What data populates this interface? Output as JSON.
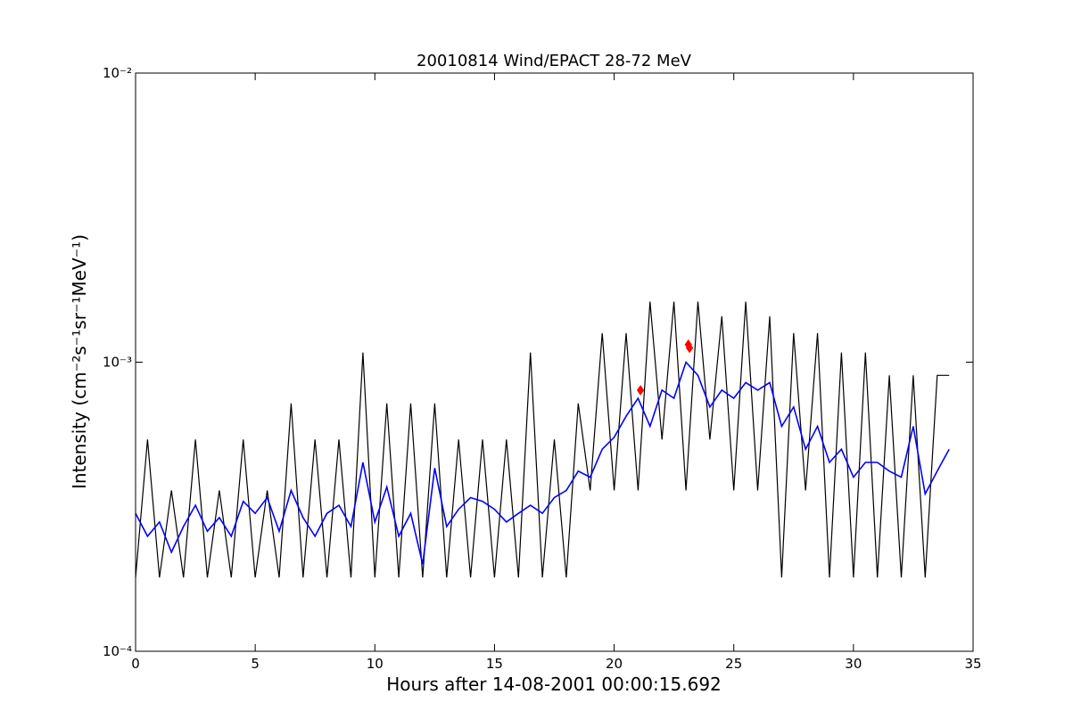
{
  "chart_data": {
    "type": "line",
    "title": "20010814 Wind/EPACT 28-72 MeV",
    "xlabel": "Hours after 14-08-2001 00:00:15.692",
    "ylabel": "Intensity (cm⁻²s⁻¹sr⁻¹MeV⁻¹)",
    "yscale": "log",
    "xlim": [
      0,
      35
    ],
    "ylim": [
      0.0001,
      0.01
    ],
    "xticks": [
      0,
      5,
      10,
      15,
      20,
      25,
      30,
      35
    ],
    "yticks": [
      {
        "value": 0.0001,
        "label": "10⁻⁴"
      },
      {
        "value": 0.001,
        "label": "10⁻³"
      },
      {
        "value": 0.01,
        "label": "10⁻²"
      }
    ],
    "x": [
      0,
      0.5,
      1,
      1.5,
      2,
      2.5,
      3,
      3.5,
      4,
      4.5,
      5,
      5.5,
      6,
      6.5,
      7,
      7.5,
      8,
      8.5,
      9,
      9.5,
      10,
      10.5,
      11,
      11.5,
      12,
      12.5,
      13,
      13.5,
      14,
      14.5,
      15,
      15.5,
      16,
      16.5,
      17,
      17.5,
      18,
      18.5,
      19,
      19.5,
      20,
      20.5,
      21,
      21.5,
      22,
      22.5,
      23,
      23.5,
      24,
      24.5,
      25,
      25.5,
      26,
      26.5,
      27,
      27.5,
      28,
      28.5,
      29,
      29.5,
      30,
      30.5,
      31,
      31.5,
      32,
      32.5,
      33,
      33.5,
      34
    ],
    "series": [
      {
        "color": "#000000",
        "values": [
          0.00018,
          0.00054,
          0.00018,
          0.00036,
          0.00018,
          0.00054,
          0.00018,
          0.00036,
          0.00018,
          0.00054,
          0.00018,
          0.00036,
          0.00018,
          0.00072,
          0.00018,
          0.00054,
          0.00018,
          0.00054,
          0.00018,
          0.00108,
          0.00018,
          0.00072,
          0.00018,
          0.00072,
          0.00018,
          0.00072,
          0.00018,
          0.00054,
          0.00018,
          0.00054,
          0.00018,
          0.00054,
          0.00018,
          0.00108,
          0.00018,
          0.00054,
          0.00018,
          0.00072,
          0.00036,
          0.00126,
          0.00036,
          0.00126,
          0.00036,
          0.00162,
          0.00054,
          0.00162,
          0.00036,
          0.00162,
          0.00054,
          0.00144,
          0.00036,
          0.00162,
          0.00036,
          0.00144,
          0.00018,
          0.00126,
          0.00036,
          0.00126,
          0.00018,
          0.00108,
          0.00018,
          0.00108,
          0.00018,
          0.0009,
          0.00018,
          0.0009,
          0.00018,
          0.0009,
          0.0009
        ]
      },
      {
        "color": "#0000ff",
        "values": [
          0.0003,
          0.00025,
          0.00028,
          0.00022,
          0.00027,
          0.00032,
          0.00026,
          0.00029,
          0.00025,
          0.00033,
          0.0003,
          0.00034,
          0.00026,
          0.00036,
          0.00029,
          0.00025,
          0.0003,
          0.00032,
          0.00027,
          0.00045,
          0.00028,
          0.00037,
          0.00025,
          0.0003,
          0.0002,
          0.00043,
          0.00027,
          0.00031,
          0.00034,
          0.00033,
          0.00031,
          0.00028,
          0.0003,
          0.00032,
          0.0003,
          0.00034,
          0.00036,
          0.00042,
          0.0004,
          0.0005,
          0.00055,
          0.00065,
          0.00075,
          0.0006,
          0.0008,
          0.00075,
          0.001,
          0.0009,
          0.0007,
          0.0008,
          0.00075,
          0.00085,
          0.0008,
          0.00085,
          0.0006,
          0.0007,
          0.0005,
          0.0006,
          0.00045,
          0.0005,
          0.0004,
          0.00045,
          0.00045,
          0.00042,
          0.0004,
          0.0006,
          0.00035,
          0.00042,
          0.0005
        ]
      },
      {
        "color": "#ff0000",
        "marker": "diamond",
        "x": [
          21.1,
          23.1,
          23.15
        ],
        "values": [
          0.0008,
          0.00115,
          0.00112
        ]
      }
    ]
  }
}
